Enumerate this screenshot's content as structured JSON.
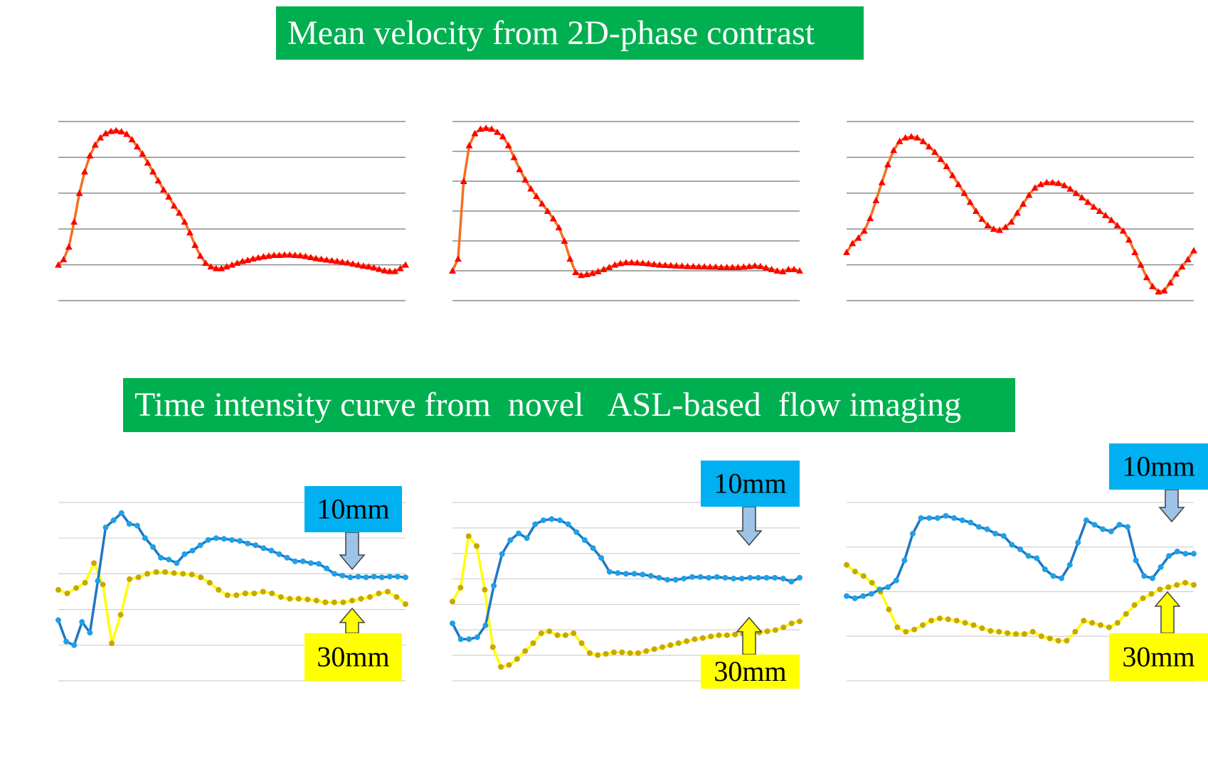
{
  "banners": {
    "top": "Mean velocity from 2D-phase contrast",
    "bottom": "Time intensity curve from  novel   ASL-based  flow imaging"
  },
  "colors": {
    "banner_bg": "#00b050",
    "velocity_line": "#f37021",
    "velocity_marker": "#ff0000",
    "near_series": "#1f77c4",
    "near_marker": "#1ea0e8",
    "far_series": "#ffff00",
    "far_marker": "#c8a800",
    "label_10mm_bg": "#00b0f0",
    "label_30mm_bg": "#ffff00",
    "arrow_10mm": "#9dc3e6",
    "arrow_30mm": "#ffff00",
    "gridline": "#a6a6a6"
  },
  "chart_data": [
    {
      "id": "pc-1",
      "type": "line",
      "title": "Mean velocity from 2D-phase contrast",
      "ylim": [
        -1,
        4
      ],
      "grid": true,
      "series": [
        {
          "name": "Mean velocity",
          "marker": "triangle",
          "values": [
            0.0,
            0.15,
            0.5,
            1.2,
            2.0,
            2.6,
            3.05,
            3.35,
            3.55,
            3.67,
            3.73,
            3.75,
            3.72,
            3.65,
            3.5,
            3.3,
            3.1,
            2.85,
            2.6,
            2.35,
            2.1,
            1.9,
            1.65,
            1.45,
            1.2,
            0.9,
            0.55,
            0.25,
            0.05,
            -0.05,
            -0.1,
            -0.1,
            -0.05,
            0.0,
            0.05,
            0.1,
            0.13,
            0.17,
            0.2,
            0.23,
            0.25,
            0.27,
            0.27,
            0.28,
            0.28,
            0.27,
            0.26,
            0.24,
            0.21,
            0.18,
            0.16,
            0.14,
            0.12,
            0.1,
            0.08,
            0.06,
            0.03,
            0.0,
            -0.03,
            -0.05,
            -0.08,
            -0.12,
            -0.16,
            -0.18,
            -0.18,
            -0.1,
            0.0
          ]
        }
      ]
    },
    {
      "id": "pc-2",
      "type": "line",
      "title": "Mean velocity from 2D-phase contrast",
      "ylim": [
        -1,
        5
      ],
      "grid": true,
      "series": [
        {
          "name": "Mean velocity",
          "marker": "triangle",
          "values": [
            0.0,
            0.4,
            3.0,
            4.2,
            4.6,
            4.75,
            4.78,
            4.75,
            4.65,
            4.5,
            4.2,
            3.8,
            3.4,
            3.05,
            2.75,
            2.5,
            2.25,
            2.0,
            1.75,
            1.45,
            1.0,
            0.4,
            -0.05,
            -0.15,
            -0.12,
            -0.08,
            -0.02,
            0.05,
            0.12,
            0.2,
            0.25,
            0.28,
            0.28,
            0.27,
            0.26,
            0.24,
            0.22,
            0.2,
            0.19,
            0.18,
            0.17,
            0.16,
            0.15,
            0.15,
            0.14,
            0.14,
            0.13,
            0.13,
            0.12,
            0.12,
            0.12,
            0.12,
            0.13,
            0.15,
            0.17,
            0.15,
            0.1,
            0.05,
            0.0,
            -0.02,
            0.05,
            0.05,
            0.0
          ]
        }
      ]
    },
    {
      "id": "pc-3",
      "type": "line",
      "title": "Mean velocity from 2D-phase contrast",
      "ylim": [
        -1,
        4
      ],
      "grid": true,
      "series": [
        {
          "name": "Mean velocity",
          "marker": "triangle",
          "values": [
            0.35,
            0.6,
            0.75,
            0.95,
            1.3,
            1.8,
            2.3,
            2.8,
            3.2,
            3.45,
            3.55,
            3.58,
            3.55,
            3.45,
            3.3,
            3.15,
            2.95,
            2.75,
            2.5,
            2.25,
            2.0,
            1.75,
            1.5,
            1.28,
            1.1,
            1.0,
            0.97,
            1.05,
            1.2,
            1.45,
            1.7,
            1.95,
            2.15,
            2.25,
            2.3,
            2.3,
            2.28,
            2.22,
            2.12,
            2.0,
            1.88,
            1.75,
            1.62,
            1.5,
            1.38,
            1.25,
            1.1,
            0.95,
            0.7,
            0.35,
            0.0,
            -0.35,
            -0.6,
            -0.75,
            -0.72,
            -0.5,
            -0.25,
            -0.05,
            0.15,
            0.4
          ]
        }
      ]
    },
    {
      "id": "asl-1",
      "type": "line",
      "title": "Time intensity curve from  novel   ASL-based  flow imaging",
      "ylim": [
        0,
        5
      ],
      "grid": true,
      "series": [
        {
          "name": "10mm",
          "values": [
            1.7,
            1.1,
            1.0,
            1.65,
            1.35,
            2.8,
            4.3,
            4.5,
            4.7,
            4.4,
            4.35,
            4.0,
            3.75,
            3.45,
            3.4,
            3.3,
            3.55,
            3.65,
            3.8,
            3.95,
            4.0,
            3.98,
            3.95,
            3.92,
            3.85,
            3.8,
            3.72,
            3.65,
            3.55,
            3.45,
            3.35,
            3.35,
            3.3,
            3.28,
            3.15,
            3.0,
            2.95,
            2.9,
            2.92,
            2.9,
            2.92,
            2.9,
            2.92,
            2.92,
            2.9
          ]
        },
        {
          "name": "30mm",
          "values": [
            2.55,
            2.45,
            2.6,
            2.75,
            3.3,
            2.7,
            1.05,
            1.85,
            2.85,
            2.9,
            3.0,
            3.05,
            3.05,
            3.02,
            3.0,
            2.98,
            2.9,
            2.75,
            2.55,
            2.4,
            2.4,
            2.45,
            2.45,
            2.5,
            2.45,
            2.35,
            2.3,
            2.3,
            2.28,
            2.25,
            2.2,
            2.2,
            2.2,
            2.25,
            2.3,
            2.35,
            2.45,
            2.5,
            2.35,
            2.15
          ]
        }
      ],
      "annotations": [
        {
          "text": "10mm",
          "series": "10mm"
        },
        {
          "text": "30mm",
          "series": "30mm"
        }
      ]
    },
    {
      "id": "asl-2",
      "type": "line",
      "title": "Time intensity curve from  novel   ASL-based  flow imaging",
      "ylim": [
        0,
        4.5
      ],
      "grid": true,
      "series": [
        {
          "name": "10mm",
          "values": [
            1.45,
            1.05,
            1.05,
            1.1,
            1.4,
            2.4,
            3.2,
            3.55,
            3.72,
            3.6,
            3.95,
            4.05,
            4.08,
            4.05,
            3.95,
            3.75,
            3.55,
            3.35,
            3.1,
            2.75,
            2.72,
            2.7,
            2.7,
            2.68,
            2.65,
            2.6,
            2.55,
            2.55,
            2.58,
            2.62,
            2.62,
            2.6,
            2.62,
            2.6,
            2.58,
            2.58,
            2.6,
            2.6,
            2.6,
            2.6,
            2.58,
            2.5,
            2.6
          ]
        },
        {
          "name": "30mm",
          "values": [
            2.0,
            2.35,
            3.65,
            3.4,
            2.3,
            0.85,
            0.35,
            0.4,
            0.55,
            0.75,
            0.95,
            1.2,
            1.25,
            1.15,
            1.15,
            1.2,
            0.95,
            0.7,
            0.65,
            0.68,
            0.72,
            0.72,
            0.7,
            0.7,
            0.75,
            0.8,
            0.85,
            0.9,
            0.95,
            1.0,
            1.05,
            1.08,
            1.12,
            1.15,
            1.15,
            1.17,
            1.18,
            1.2,
            1.22,
            1.25,
            1.28,
            1.35,
            1.45,
            1.5
          ]
        }
      ],
      "annotations": [
        {
          "text": "10mm",
          "series": "10mm"
        },
        {
          "text": "30mm",
          "series": "30mm"
        }
      ]
    },
    {
      "id": "asl-3",
      "type": "line",
      "title": "Time intensity curve from  novel   ASL-based  flow imaging",
      "ylim": [
        0,
        4
      ],
      "grid": true,
      "series": [
        {
          "name": "10mm",
          "values": [
            1.9,
            1.85,
            1.9,
            1.95,
            2.05,
            2.1,
            2.25,
            2.7,
            3.3,
            3.65,
            3.65,
            3.65,
            3.7,
            3.65,
            3.6,
            3.55,
            3.45,
            3.4,
            3.3,
            3.25,
            3.05,
            2.95,
            2.8,
            2.75,
            2.5,
            2.35,
            2.3,
            2.6,
            3.1,
            3.6,
            3.5,
            3.4,
            3.35,
            3.5,
            3.45,
            2.7,
            2.35,
            2.3,
            2.55,
            2.8,
            2.9,
            2.85,
            2.85
          ]
        },
        {
          "name": "30mm",
          "values": [
            2.6,
            2.45,
            2.35,
            2.2,
            2.0,
            1.6,
            1.2,
            1.1,
            1.15,
            1.25,
            1.35,
            1.4,
            1.38,
            1.35,
            1.3,
            1.25,
            1.18,
            1.12,
            1.1,
            1.07,
            1.05,
            1.05,
            1.1,
            1.0,
            0.95,
            0.9,
            0.9,
            1.1,
            1.35,
            1.3,
            1.25,
            1.2,
            1.3,
            1.5,
            1.7,
            1.85,
            1.95,
            2.05,
            2.1,
            2.15,
            2.2,
            2.15
          ]
        }
      ],
      "annotations": [
        {
          "text": "10mm",
          "series": "10mm"
        },
        {
          "text": "30mm",
          "series": "30mm"
        }
      ]
    }
  ]
}
